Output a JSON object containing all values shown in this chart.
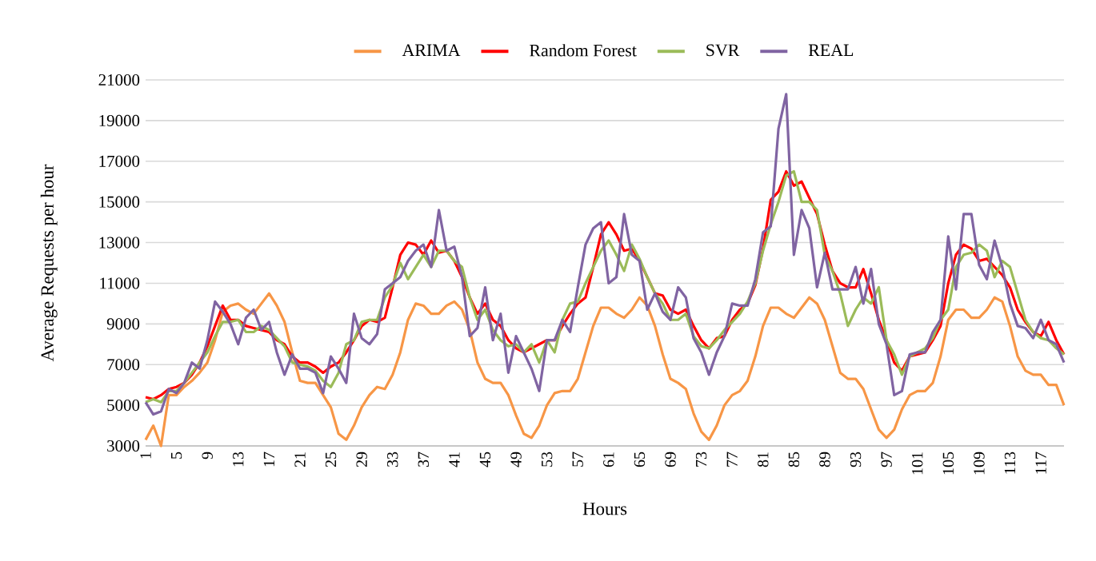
{
  "chart_data": {
    "type": "line",
    "xlabel": "Hours",
    "ylabel": "Average Requests  per hour",
    "x": [
      1,
      2,
      3,
      4,
      5,
      6,
      7,
      8,
      9,
      10,
      11,
      12,
      13,
      14,
      15,
      16,
      17,
      18,
      19,
      20,
      21,
      22,
      23,
      24,
      25,
      26,
      27,
      28,
      29,
      30,
      31,
      32,
      33,
      34,
      35,
      36,
      37,
      38,
      39,
      40,
      41,
      42,
      43,
      44,
      45,
      46,
      47,
      48,
      49,
      50,
      51,
      52,
      53,
      54,
      55,
      56,
      57,
      58,
      59,
      60,
      61,
      62,
      63,
      64,
      65,
      66,
      67,
      68,
      69,
      70,
      71,
      72,
      73,
      74,
      75,
      76,
      77,
      78,
      79,
      80,
      81,
      82,
      83,
      84,
      85,
      86,
      87,
      88,
      89,
      90,
      91,
      92,
      93,
      94,
      95,
      96,
      97,
      98,
      99,
      100,
      101,
      102,
      103,
      104,
      105,
      106,
      107,
      108,
      109,
      110,
      111,
      112,
      113,
      114,
      115,
      116,
      117,
      118,
      119,
      120
    ],
    "xlim": [
      1,
      120
    ],
    "xticks": [
      1,
      5,
      9,
      13,
      17,
      21,
      25,
      29,
      33,
      37,
      41,
      45,
      49,
      53,
      57,
      61,
      65,
      69,
      73,
      77,
      81,
      85,
      89,
      93,
      97,
      101,
      105,
      109,
      113,
      117
    ],
    "ylim": [
      3000,
      21000
    ],
    "yticks": [
      3000,
      5000,
      7000,
      9000,
      11000,
      13000,
      15000,
      17000,
      19000,
      21000
    ],
    "grid": "y",
    "legend": "top",
    "marker": "none",
    "line_style": "solid",
    "series": [
      {
        "name": "ARIMA",
        "color": "#f79646",
        "values": [
          3300,
          4000,
          3000,
          5500,
          5500,
          5900,
          6200,
          6600,
          7100,
          8200,
          9600,
          9900,
          10000,
          9700,
          9500,
          10000,
          10500,
          9900,
          9100,
          7600,
          6200,
          6100,
          6100,
          5500,
          4900,
          3600,
          3300,
          4000,
          4900,
          5500,
          5900,
          5800,
          6500,
          7600,
          9200,
          10000,
          9900,
          9500,
          9500,
          9900,
          10100,
          9700,
          8700,
          7100,
          6300,
          6100,
          6100,
          5500,
          4500,
          3600,
          3400,
          4000,
          5000,
          5600,
          5700,
          5700,
          6300,
          7600,
          8900,
          9800,
          9800,
          9500,
          9300,
          9700,
          10300,
          9900,
          8900,
          7500,
          6300,
          6100,
          5800,
          4600,
          3700,
          3300,
          4000,
          5000,
          5500,
          5700,
          6200,
          7400,
          8900,
          9800,
          9800,
          9500,
          9300,
          9800,
          10300,
          10000,
          9200,
          7900,
          6600,
          6300,
          6300,
          5800,
          4800,
          3800,
          3400,
          3800,
          4800,
          5500,
          5700,
          5700,
          6100,
          7400,
          9200,
          9700,
          9700,
          9300,
          9300,
          9700,
          10300,
          10100,
          8900,
          7400,
          6700,
          6500,
          6500,
          6000,
          6000,
          5000
        ]
      },
      {
        "name": "Random Forest",
        "color": "#ff0000",
        "values": [
          5400,
          5300,
          5500,
          5800,
          5900,
          6100,
          6500,
          7100,
          7900,
          8900,
          9900,
          9200,
          9200,
          8900,
          8800,
          8700,
          8600,
          8200,
          8000,
          7400,
          7100,
          7100,
          6900,
          6600,
          6900,
          7100,
          7600,
          8200,
          8900,
          9200,
          9100,
          9300,
          10800,
          12400,
          13000,
          12900,
          12400,
          13100,
          12500,
          12600,
          12100,
          11300,
          10300,
          9500,
          10000,
          9200,
          8900,
          8200,
          7800,
          7600,
          7800,
          8000,
          8200,
          8200,
          8900,
          9500,
          10000,
          10300,
          11800,
          13400,
          14000,
          13400,
          12600,
          12700,
          12100,
          11300,
          10500,
          10400,
          9700,
          9500,
          9700,
          8900,
          8200,
          7800,
          8300,
          8400,
          9200,
          9700,
          10000,
          10900,
          12700,
          15100,
          15500,
          16500,
          15800,
          16000,
          15200,
          14400,
          12900,
          11600,
          11000,
          10800,
          10800,
          11700,
          10500,
          9200,
          8200,
          7100,
          6700,
          7400,
          7500,
          7600,
          8200,
          8900,
          11000,
          12400,
          12900,
          12700,
          12100,
          12200,
          11800,
          11400,
          10800,
          9700,
          9100,
          8600,
          8400,
          9100,
          8200,
          7500
        ]
      },
      {
        "name": "SVR",
        "color": "#9bbb59",
        "values": [
          5150,
          5300,
          5150,
          5700,
          5700,
          6100,
          6600,
          7100,
          7600,
          8400,
          9100,
          9100,
          9200,
          8600,
          8600,
          8900,
          8700,
          8300,
          7900,
          7100,
          7000,
          6900,
          6700,
          6200,
          5900,
          6600,
          8000,
          8200,
          9100,
          9200,
          9200,
          10300,
          10900,
          12000,
          11200,
          11800,
          12400,
          11800,
          12600,
          12600,
          12100,
          11800,
          10300,
          9200,
          9700,
          8700,
          8200,
          7900,
          8000,
          7600,
          8000,
          7100,
          8200,
          7600,
          9200,
          10000,
          10100,
          11000,
          11800,
          12600,
          13100,
          12400,
          11600,
          12900,
          12200,
          11300,
          10500,
          10000,
          9200,
          9200,
          9500,
          8400,
          7900,
          7800,
          8200,
          8700,
          9100,
          9500,
          10100,
          11000,
          12600,
          13900,
          15000,
          16300,
          16500,
          15000,
          15000,
          14600,
          12400,
          11600,
          10500,
          8900,
          9700,
          10300,
          10000,
          10800,
          8200,
          7500,
          6500,
          7400,
          7600,
          7800,
          8300,
          9200,
          9700,
          11800,
          12400,
          12500,
          12900,
          12600,
          11300,
          12100,
          11800,
          10500,
          9200,
          8600,
          8300,
          8200,
          7800,
          7500
        ]
      },
      {
        "name": "REAL",
        "color": "#8064a2",
        "values": [
          5150,
          4550,
          4700,
          5800,
          5600,
          6100,
          7100,
          6800,
          8200,
          10100,
          9600,
          9000,
          8000,
          9300,
          9700,
          8700,
          9100,
          7600,
          6500,
          7500,
          6800,
          6800,
          6600,
          5600,
          7400,
          6800,
          6100,
          9500,
          8300,
          8000,
          8500,
          10700,
          11000,
          11300,
          12100,
          12600,
          12900,
          11800,
          14600,
          12600,
          12800,
          11300,
          8400,
          8800,
          10800,
          8200,
          9500,
          6600,
          8400,
          7600,
          6800,
          5700,
          8200,
          8200,
          9200,
          8600,
          10800,
          12900,
          13700,
          14000,
          11000,
          11300,
          14400,
          12400,
          12100,
          9700,
          10500,
          9600,
          9200,
          10800,
          10300,
          8300,
          7600,
          6500,
          7600,
          8400,
          10000,
          9900,
          9900,
          11200,
          13500,
          13800,
          18600,
          20300,
          12400,
          14600,
          13700,
          10800,
          12500,
          10700,
          10700,
          10700,
          11800,
          10000,
          11700,
          9000,
          8000,
          5500,
          5700,
          7500,
          7600,
          7600,
          8600,
          9200,
          13300,
          10700,
          14400,
          14400,
          11900,
          11200,
          13100,
          11800,
          10000,
          8900,
          8800,
          8300,
          9200,
          8200,
          8000,
          7100
        ]
      }
    ]
  }
}
